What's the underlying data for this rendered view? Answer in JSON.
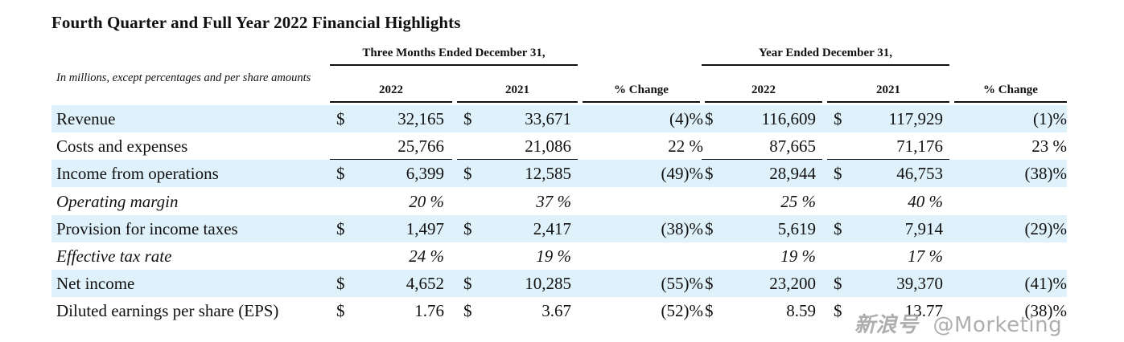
{
  "title": "Fourth Quarter and Full Year 2022 Financial Highlights",
  "group_headers": {
    "three_months": "Three Months Ended December 31,",
    "year": "Year Ended December 31,"
  },
  "note": "In millions, except percentages and per share amounts",
  "column_headers": [
    "2022",
    "2021",
    "% Change",
    "2022",
    "2021",
    "% Change"
  ],
  "rows": [
    {
      "label": "Revenue",
      "italic": false,
      "shade": true,
      "d1": "$",
      "q22": "32,165",
      "d2": "$",
      "q21": "33,671",
      "qchg": "(4)%",
      "d3": "$",
      "y22": "116,609",
      "d4": "$",
      "y21": "117,929",
      "ychg": "(1)%"
    },
    {
      "label": "Costs and expenses",
      "italic": false,
      "shade": false,
      "d1": "",
      "q22": "25,766",
      "d2": "",
      "q21": "21,086",
      "qchg": "22 %",
      "d3": "",
      "y22": "87,665",
      "d4": "",
      "y21": "71,176",
      "ychg": "23 %"
    },
    {
      "label": "Income from operations",
      "italic": false,
      "shade": true,
      "d1": "$",
      "q22": "6,399",
      "d2": "$",
      "q21": "12,585",
      "qchg": "(49)%",
      "d3": "$",
      "y22": "28,944",
      "d4": "$",
      "y21": "46,753",
      "ychg": "(38)%"
    },
    {
      "label": "Operating margin",
      "italic": true,
      "shade": false,
      "d1": "",
      "q22": "20 %",
      "d2": "",
      "q21": "37 %",
      "qchg": "",
      "d3": "",
      "y22": "25 %",
      "d4": "",
      "y21": "40 %",
      "ychg": ""
    },
    {
      "label": "Provision for income taxes",
      "italic": false,
      "shade": true,
      "d1": "$",
      "q22": "1,497",
      "d2": "$",
      "q21": "2,417",
      "qchg": "(38)%",
      "d3": "$",
      "y22": "5,619",
      "d4": "$",
      "y21": "7,914",
      "ychg": "(29)%"
    },
    {
      "label": "Effective tax rate",
      "italic": true,
      "shade": false,
      "d1": "",
      "q22": "24 %",
      "d2": "",
      "q21": "19 %",
      "qchg": "",
      "d3": "",
      "y22": "19 %",
      "d4": "",
      "y21": "17 %",
      "ychg": ""
    },
    {
      "label": "Net income",
      "italic": false,
      "shade": true,
      "d1": "$",
      "q22": "4,652",
      "d2": "$",
      "q21": "10,285",
      "qchg": "(55)%",
      "d3": "$",
      "y22": "23,200",
      "d4": "$",
      "y21": "39,370",
      "ychg": "(41)%"
    },
    {
      "label": "Diluted earnings per share (EPS)",
      "italic": false,
      "shade": false,
      "d1": "$",
      "q22": "1.76",
      "d2": "$",
      "q21": "3.67",
      "qchg": "(52)%",
      "d3": "$",
      "y22": "8.59",
      "d4": "$",
      "y21": "13.77",
      "ychg": "(38)%"
    }
  ],
  "watermark": {
    "cn": "新浪号",
    "handle": "@Morketing"
  }
}
